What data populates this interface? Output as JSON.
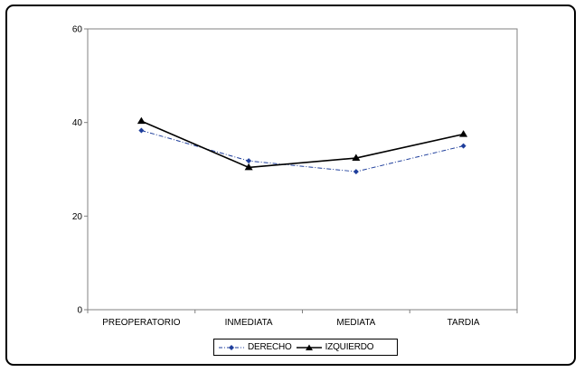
{
  "chart_data": {
    "type": "line",
    "categories": [
      "PREOPERATORIO",
      "INMEDIATA",
      "MEDIATA",
      "TARDIA"
    ],
    "series": [
      {
        "name": "DERECHO",
        "values": [
          38.3,
          31.8,
          29.5,
          35.0
        ],
        "color": "#1f3f9c",
        "line_style": "dash-dot",
        "marker": "diamond"
      },
      {
        "name": "IZQUIERDO",
        "values": [
          40.3,
          30.4,
          32.4,
          37.5
        ],
        "color": "#000000",
        "line_style": "solid",
        "marker": "triangle"
      }
    ],
    "yticks": [
      0,
      20,
      40,
      60
    ],
    "ylim": [
      0,
      60
    ],
    "grid": false,
    "legend_position": "bottom"
  }
}
